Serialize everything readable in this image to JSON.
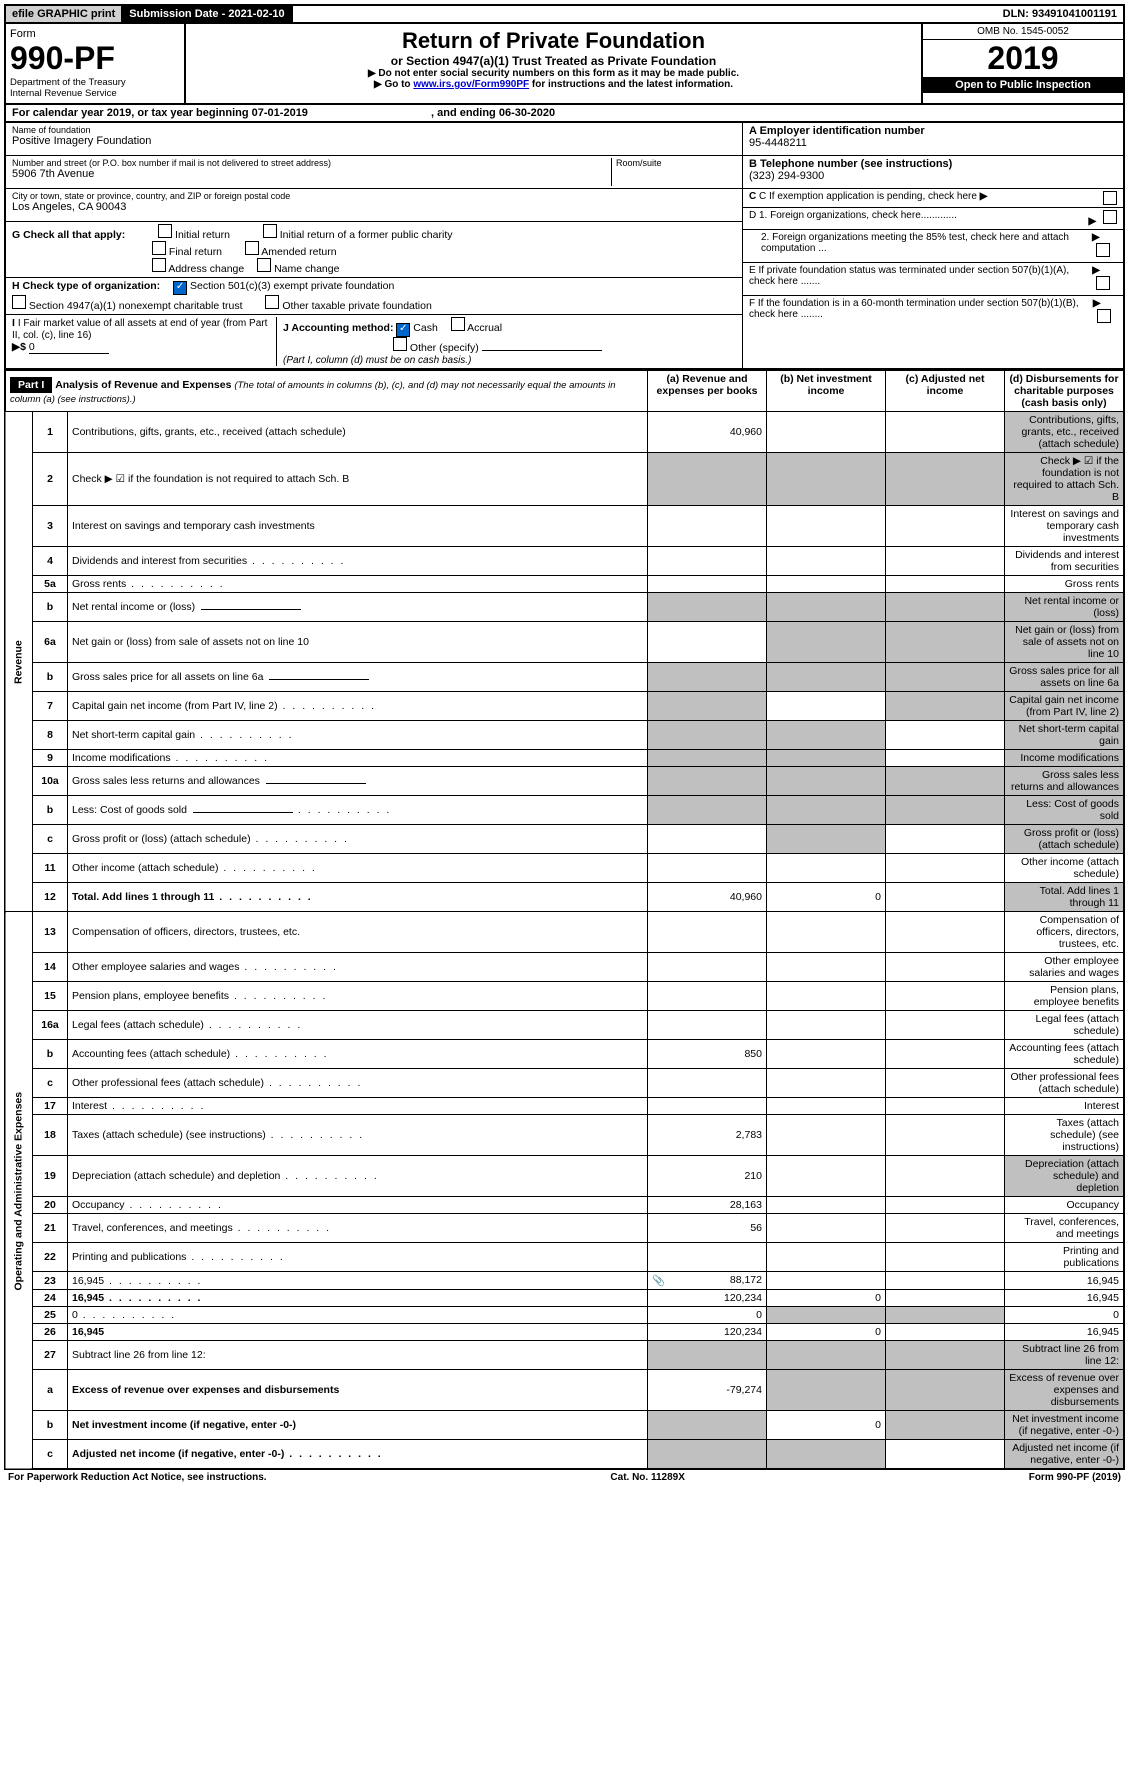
{
  "topbar": {
    "efile": "efile GRAPHIC print",
    "subdate_label": "Submission Date - ",
    "subdate": "2021-02-10",
    "dln_label": "DLN: ",
    "dln": "93491041001191"
  },
  "header": {
    "form_label": "Form",
    "form_no": "990-PF",
    "dept": "Department of the Treasury",
    "irs": "Internal Revenue Service",
    "title": "Return of Private Foundation",
    "subtitle": "or Section 4947(a)(1) Trust Treated as Private Foundation",
    "instr1": "▶ Do not enter social security numbers on this form as it may be made public.",
    "instr2_pre": "▶ Go to ",
    "instr2_link": "www.irs.gov/Form990PF",
    "instr2_post": " for instructions and the latest information.",
    "omb": "OMB No. 1545-0052",
    "year": "2019",
    "open": "Open to Public Inspection"
  },
  "calyear": {
    "text_pre": "For calendar year 2019, or tax year beginning ",
    "begin": "07-01-2019",
    "mid": " , and ending ",
    "end": "06-30-2020"
  },
  "entity": {
    "name_label": "Name of foundation",
    "name": "Positive Imagery Foundation",
    "addr_label": "Number and street (or P.O. box number if mail is not delivered to street address)",
    "addr": "5906 7th Avenue",
    "room_label": "Room/suite",
    "city_label": "City or town, state or province, country, and ZIP or foreign postal code",
    "city": "Los Angeles, CA  90043"
  },
  "right": {
    "A_label": "A Employer identification number",
    "A_val": "95-4448211",
    "B_label": "B Telephone number (see instructions)",
    "B_val": "(323) 294-9300",
    "C_label": "C If exemption application is pending, check here",
    "D1": "D 1. Foreign organizations, check here.............",
    "D2": "2. Foreign organizations meeting the 85% test, check here and attach computation ...",
    "E": "E   If private foundation status was terminated under section 507(b)(1)(A), check here .......",
    "F": "F   If the foundation is in a 60-month termination under section 507(b)(1)(B), check here ........"
  },
  "G": {
    "label": "G Check all that apply:",
    "opts": [
      "Initial return",
      "Initial return of a former public charity",
      "Final return",
      "Amended return",
      "Address change",
      "Name change"
    ]
  },
  "H": {
    "label": "H Check type of organization:",
    "opt1": "Section 501(c)(3) exempt private foundation",
    "opt2": "Section 4947(a)(1) nonexempt charitable trust",
    "opt3": "Other taxable private foundation"
  },
  "I": {
    "label": "I Fair market value of all assets at end of year (from Part II, col. (c), line 16)",
    "val": "0"
  },
  "J": {
    "label": "J Accounting method:",
    "cash": "Cash",
    "accrual": "Accrual",
    "other": "Other (specify)",
    "note": "(Part I, column (d) must be on cash basis.)"
  },
  "part1": {
    "label": "Part I",
    "title": "Analysis of Revenue and Expenses",
    "note": "(The total of amounts in columns (b), (c), and (d) may not necessarily equal the amounts in column (a) (see instructions).)",
    "cols": {
      "a": "(a)  Revenue and expenses per books",
      "b": "(b)  Net investment income",
      "c": "(c)  Adjusted net income",
      "d": "(d)  Disbursements for charitable purposes (cash basis only)"
    }
  },
  "sections": {
    "revenue": "Revenue",
    "opex": "Operating and Administrative Expenses"
  },
  "rows": [
    {
      "n": "1",
      "d": "Contributions, gifts, grants, etc., received (attach schedule)",
      "a": "40,960",
      "shade_d": true
    },
    {
      "n": "2",
      "d": "Check ▶ ☑ if the foundation is not required to attach Sch. B",
      "shade_all": true
    },
    {
      "n": "3",
      "d": "Interest on savings and temporary cash investments"
    },
    {
      "n": "4",
      "d": "Dividends and interest from securities",
      "dots": true
    },
    {
      "n": "5a",
      "d": "Gross rents",
      "dots": true
    },
    {
      "n": "b",
      "d": "Net rental income or (loss)",
      "fill": true,
      "shade_all": true
    },
    {
      "n": "6a",
      "d": "Net gain or (loss) from sale of assets not on line 10",
      "shade_bcd": true
    },
    {
      "n": "b",
      "d": "Gross sales price for all assets on line 6a",
      "fill": true,
      "shade_all": true
    },
    {
      "n": "7",
      "d": "Capital gain net income (from Part IV, line 2)",
      "dots": true,
      "shade_a": true,
      "shade_cd": true
    },
    {
      "n": "8",
      "d": "Net short-term capital gain",
      "dots": true,
      "shade_ab": true,
      "shade_d": true
    },
    {
      "n": "9",
      "d": "Income modifications",
      "dots": true,
      "shade_ab": true,
      "shade_d": true
    },
    {
      "n": "10a",
      "d": "Gross sales less returns and allowances",
      "fill": true,
      "shade_all": true
    },
    {
      "n": "b",
      "d": "Less: Cost of goods sold",
      "dots": true,
      "fill": true,
      "shade_all": true
    },
    {
      "n": "c",
      "d": "Gross profit or (loss) (attach schedule)",
      "dots": true,
      "shade_b": true,
      "shade_d": true
    },
    {
      "n": "11",
      "d": "Other income (attach schedule)",
      "dots": true
    },
    {
      "n": "12",
      "d": "Total. Add lines 1 through 11",
      "dots": true,
      "bold": true,
      "a": "40,960",
      "b": "0",
      "shade_d": true
    }
  ],
  "exp_rows": [
    {
      "n": "13",
      "d": "Compensation of officers, directors, trustees, etc."
    },
    {
      "n": "14",
      "d": "Other employee salaries and wages",
      "dots": true
    },
    {
      "n": "15",
      "d": "Pension plans, employee benefits",
      "dots": true
    },
    {
      "n": "16a",
      "d": "Legal fees (attach schedule)",
      "dots": true
    },
    {
      "n": "b",
      "d": "Accounting fees (attach schedule)",
      "dots": true,
      "a": "850"
    },
    {
      "n": "c",
      "d": "Other professional fees (attach schedule)",
      "dots": true
    },
    {
      "n": "17",
      "d": "Interest",
      "dots": true
    },
    {
      "n": "18",
      "d": "Taxes (attach schedule) (see instructions)",
      "dots": true,
      "a": "2,783"
    },
    {
      "n": "19",
      "d": "Depreciation (attach schedule) and depletion",
      "dots": true,
      "a": "210",
      "shade_d": true
    },
    {
      "n": "20",
      "d": "Occupancy",
      "dots": true,
      "a": "28,163"
    },
    {
      "n": "21",
      "d": "Travel, conferences, and meetings",
      "dots": true,
      "a": "56"
    },
    {
      "n": "22",
      "d": "Printing and publications",
      "dots": true
    },
    {
      "n": "23",
      "d": "16,945",
      "dots": true,
      "a": "88,172",
      "icon": true
    },
    {
      "n": "24",
      "d": "16,945",
      "dots": true,
      "bold": true,
      "a": "120,234",
      "b": "0"
    },
    {
      "n": "25",
      "d": "0",
      "dots": true,
      "a": "0",
      "shade_bc": true
    },
    {
      "n": "26",
      "d": "16,945",
      "bold": true,
      "a": "120,234",
      "b": "0"
    },
    {
      "n": "27",
      "d": "Subtract line 26 from line 12:",
      "shade_all": true
    },
    {
      "n": "a",
      "d": "Excess of revenue over expenses and disbursements",
      "bold": true,
      "a": "-79,274",
      "shade_bcd": true
    },
    {
      "n": "b",
      "d": "Net investment income (if negative, enter -0-)",
      "bold": true,
      "b": "0",
      "shade_a": true,
      "shade_cd": true
    },
    {
      "n": "c",
      "d": "Adjusted net income (if negative, enter -0-)",
      "bold": true,
      "dots": true,
      "shade_ab": true,
      "shade_d": true
    }
  ],
  "footer": {
    "left": "For Paperwork Reduction Act Notice, see instructions.",
    "mid": "Cat. No. 11289X",
    "right": "Form 990-PF (2019)"
  }
}
